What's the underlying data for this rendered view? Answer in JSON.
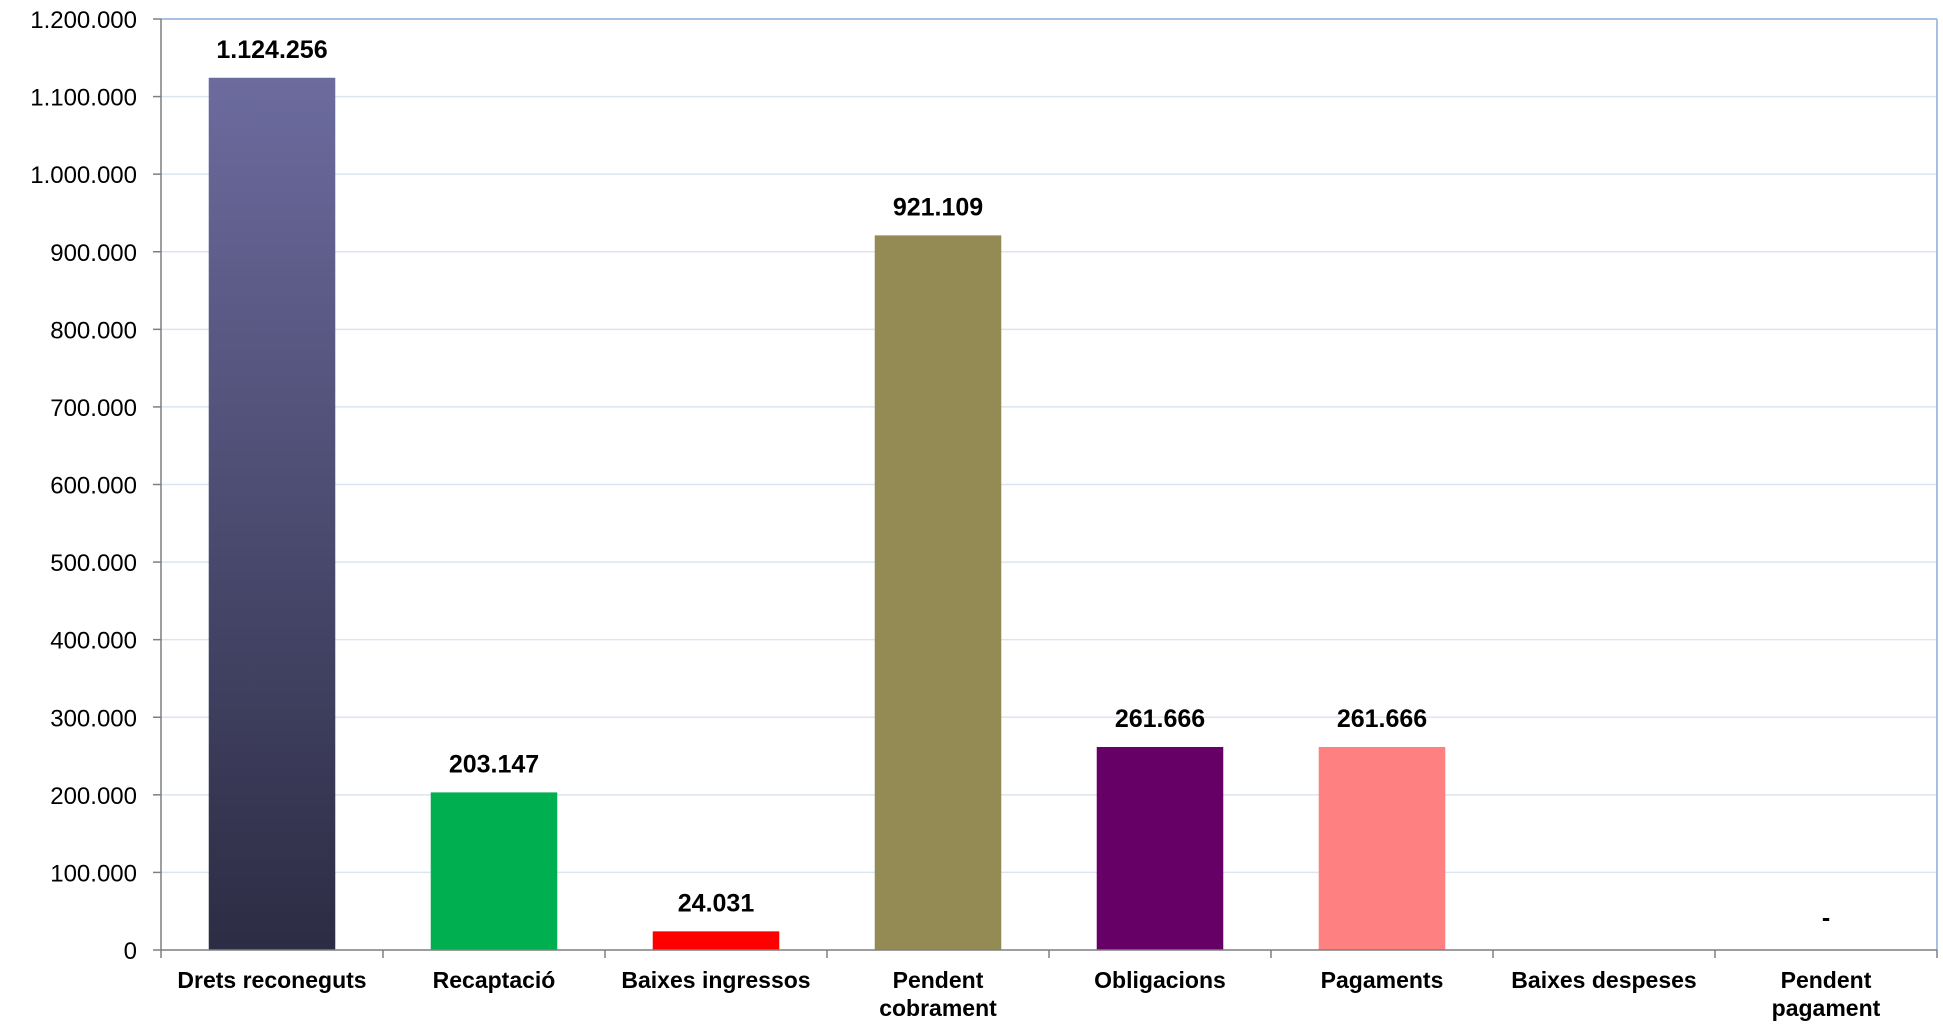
{
  "chart_data": {
    "type": "bar",
    "title": "",
    "xlabel": "",
    "ylabel": "",
    "ylim": [
      0,
      1200000
    ],
    "ytick_step": 100000,
    "y_tick_labels": [
      "0",
      "100.000",
      "200.000",
      "300.000",
      "400.000",
      "500.000",
      "600.000",
      "700.000",
      "800.000",
      "900.000",
      "1.000.000",
      "1.100.000",
      "1.200.000"
    ],
    "grid": true,
    "legend": "none",
    "categories": [
      [
        "Drets reconeguts"
      ],
      [
        "Recaptació"
      ],
      [
        "Baixes ingressos"
      ],
      [
        "Pendent",
        "cobrament"
      ],
      [
        "Obligacions"
      ],
      [
        "Pagaments"
      ],
      [
        "Baixes despeses"
      ],
      [
        "Pendent",
        "pagament"
      ]
    ],
    "values": [
      1124256,
      203147,
      24031,
      921109,
      261666,
      261666,
      0,
      0
    ],
    "data_labels": [
      "1.124.256",
      "203.147",
      "24.031",
      "921.109",
      "261.666",
      "261.666",
      "",
      "-"
    ],
    "colors": [
      "#5b5a8e",
      "#00b050",
      "#ff0000",
      "#948a54",
      "#660066",
      "#ff8080",
      "#ffffff",
      "#ffffff"
    ],
    "gradient_first_bar": [
      "#6c6b9e",
      "#2c2c44"
    ],
    "gridline_color": "#dbe5f1",
    "frame_color": "#a7c1e6"
  }
}
